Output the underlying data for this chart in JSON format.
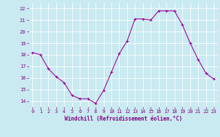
{
  "x": [
    0,
    1,
    2,
    3,
    4,
    5,
    6,
    7,
    8,
    9,
    10,
    11,
    12,
    13,
    14,
    15,
    16,
    17,
    18,
    19,
    20,
    21,
    22,
    23
  ],
  "y": [
    18.2,
    18.0,
    16.8,
    16.1,
    15.6,
    14.5,
    14.2,
    14.2,
    13.8,
    14.9,
    16.5,
    18.1,
    19.2,
    21.1,
    21.1,
    21.0,
    21.8,
    21.8,
    21.8,
    20.6,
    19.0,
    17.6,
    16.4,
    15.9
  ],
  "line_color": "#990099",
  "marker": "+",
  "marker_size": 3,
  "marker_lw": 0.8,
  "line_width": 0.8,
  "background_color": "#c8eaf0",
  "grid_color": "#ffffff",
  "xlabel": "Windchill (Refroidissement éolien,°C)",
  "xlabel_color": "#800080",
  "tick_color": "#800080",
  "ylim": [
    13.5,
    22.5
  ],
  "yticks": [
    14,
    15,
    16,
    17,
    18,
    19,
    20,
    21,
    22
  ],
  "xticks": [
    0,
    1,
    2,
    3,
    4,
    5,
    6,
    7,
    8,
    9,
    10,
    11,
    12,
    13,
    14,
    15,
    16,
    17,
    18,
    19,
    20,
    21,
    22,
    23
  ],
  "tick_fontsize": 5,
  "xlabel_fontsize": 5.5,
  "xlabel_fontweight": "bold"
}
